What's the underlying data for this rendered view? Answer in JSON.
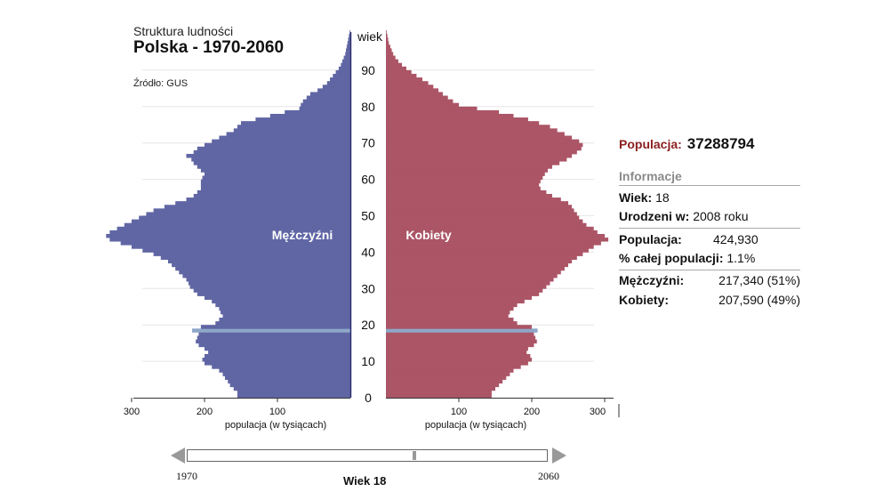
{
  "header": {
    "subtitle": "Struktura ludności",
    "title": "Polska - 1970-2060",
    "source": "Źródło: GUS"
  },
  "colors": {
    "male": "#6066a4",
    "female": "#ab5566",
    "highlight": "#8ea7c8",
    "population_label": "#8b1f1f"
  },
  "chart_data": {
    "type": "population-pyramid",
    "title": "Polska - 1970-2060",
    "year": 2026,
    "ages": [
      0,
      1,
      2,
      3,
      4,
      5,
      6,
      7,
      8,
      9,
      10,
      11,
      12,
      13,
      14,
      15,
      16,
      17,
      18,
      19,
      20,
      21,
      22,
      23,
      24,
      25,
      26,
      27,
      28,
      29,
      30,
      31,
      32,
      33,
      34,
      35,
      36,
      37,
      38,
      39,
      40,
      41,
      42,
      43,
      44,
      45,
      46,
      47,
      48,
      49,
      50,
      51,
      52,
      53,
      54,
      55,
      56,
      57,
      58,
      59,
      60,
      61,
      62,
      63,
      64,
      65,
      66,
      67,
      68,
      69,
      70,
      71,
      72,
      73,
      74,
      75,
      76,
      77,
      78,
      79,
      80,
      81,
      82,
      83,
      84,
      85,
      86,
      87,
      88,
      89,
      90,
      91,
      92,
      93,
      94,
      95,
      96,
      97,
      98,
      99,
      100
    ],
    "series": [
      {
        "name": "Mężczyźni",
        "side": "left",
        "values": [
          155,
          155,
          160,
          165,
          168,
          172,
          175,
          180,
          190,
          200,
          203,
          200,
          195,
          200,
          208,
          212,
          210,
          208,
          217,
          205,
          185,
          180,
          175,
          178,
          180,
          185,
          190,
          200,
          210,
          215,
          220,
          222,
          225,
          230,
          235,
          240,
          245,
          250,
          260,
          270,
          285,
          300,
          315,
          330,
          335,
          330,
          320,
          310,
          300,
          290,
          280,
          270,
          255,
          240,
          225,
          215,
          210,
          205,
          205,
          205,
          203,
          200,
          205,
          210,
          215,
          218,
          225,
          215,
          210,
          200,
          190,
          180,
          170,
          160,
          155,
          150,
          130,
          110,
          90,
          70,
          68,
          65,
          60,
          55,
          45,
          38,
          32,
          28,
          24,
          20,
          16,
          13,
          11,
          9,
          7,
          6,
          5,
          4,
          3,
          2,
          1
        ]
      },
      {
        "name": "Kobiety",
        "side": "right",
        "values": [
          145,
          145,
          150,
          155,
          160,
          165,
          170,
          175,
          185,
          195,
          200,
          198,
          193,
          195,
          203,
          207,
          205,
          203,
          208,
          200,
          180,
          175,
          168,
          170,
          175,
          180,
          190,
          200,
          210,
          215,
          220,
          225,
          230,
          235,
          240,
          245,
          250,
          255,
          262,
          270,
          278,
          285,
          295,
          305,
          300,
          290,
          285,
          275,
          270,
          265,
          262,
          258,
          255,
          250,
          240,
          228,
          220,
          212,
          210,
          212,
          215,
          218,
          222,
          228,
          238,
          248,
          255,
          262,
          268,
          270,
          265,
          255,
          245,
          235,
          225,
          210,
          195,
          175,
          155,
          125,
          100,
          92,
          85,
          78,
          72,
          65,
          58,
          50,
          42,
          35,
          28,
          22,
          17,
          13,
          10,
          8,
          6,
          4,
          3,
          2,
          1
        ]
      }
    ],
    "highlight_age": 18,
    "age_axis": {
      "label": "wiek",
      "ticks": [
        0,
        10,
        20,
        30,
        40,
        50,
        60,
        70,
        80,
        90
      ]
    },
    "x_axis": {
      "label": "populacja (w tysiącach)",
      "ticks": [
        300,
        200,
        100
      ],
      "range": [
        0,
        300
      ]
    },
    "series_labels": {
      "male": "Mężczyźni",
      "female": "Kobiety"
    }
  },
  "right_tick_labels": [
    "100",
    "200",
    "300"
  ],
  "info": {
    "population_label": "Populacja:",
    "population_value": "37288794",
    "heading": "Informacje",
    "age_label": "Wiek:",
    "age_value": "18",
    "born_label": "Urodzeni w:",
    "born_value": "2008 roku",
    "group_population_label": "Populacja:",
    "group_population_value": "424,930",
    "share_label": "% całej populacji:",
    "share_value": "1.1%",
    "men_label": "Mężczyźni:",
    "men_value": "217,340 (51%)",
    "women_label": "Kobiety:",
    "women_value": "207,590 (49%)"
  },
  "slider": {
    "start_year": "1970",
    "end_year": "2060",
    "current_label": "Wiek 18"
  }
}
